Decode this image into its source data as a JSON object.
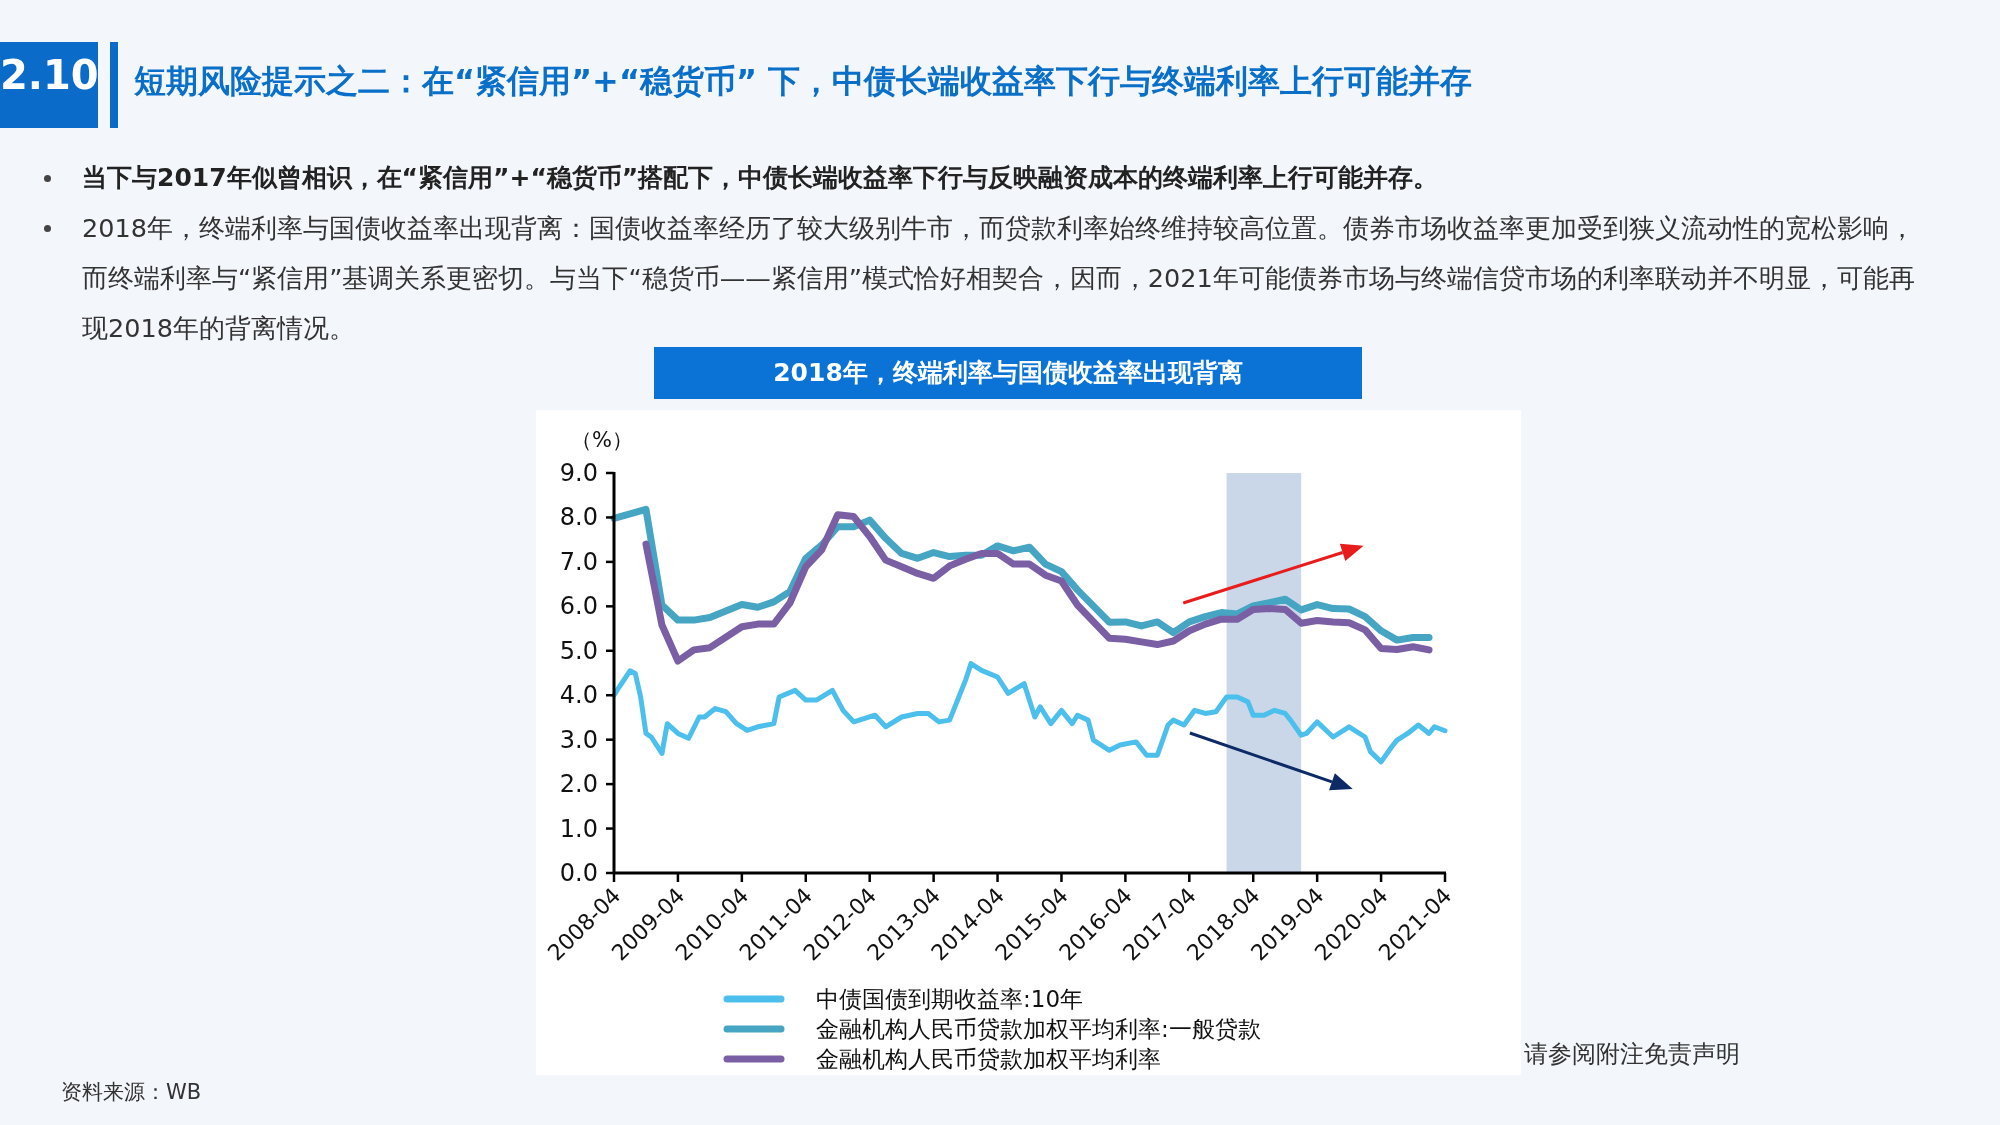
{
  "chart_data": {
    "type": "line",
    "title": "2018年，终端利率与国债收益率出现背离",
    "subtitle": "短期风险提示之二：在“紧信用”+“稳货币” 下，中债长端收益率下行与终端利率上行可能并存",
    "ylabel": "（%）",
    "annotations": [
      "2.10",
      "当下与2017年似曾相识，在“紧信用”+“稳货币”搭配下，中债长端收益率下行与反映融资成本的终端利率上行可能并存。",
      "2018年，终端利率与国债收益率出现背离：国债收益率经历了较大级别牛市，而贷款利率始终维持较高位置。债券市场收益率更加受到狭义流动性的宽松影响，而终端利率与“紧信用”基调关系更密切。与当下“稳货币——紧信用”模式恰好相契合，因而，2021年可能债券市场与终端信贷市场的利率联动并不明显，可能再现2018年的背离情况。",
      "资料来源：WB",
      "请参阅附注免责声明"
    ],
    "xlim": [
      "2008-04",
      "2021-04"
    ],
    "xticks": [
      "2008-04",
      "2009-04",
      "2010-04",
      "2011-04",
      "2012-04",
      "2013-04",
      "2014-04",
      "2015-04",
      "2016-04",
      "2017-04",
      "2018-04",
      "2019-04",
      "2020-04",
      "2021-04"
    ],
    "ylim": [
      0,
      9
    ],
    "yticks": [
      {
        "value": 0,
        "label": "0.0"
      },
      {
        "value": 1,
        "label": "1.0"
      },
      {
        "value": 2,
        "label": "2.0"
      },
      {
        "value": 3,
        "label": "3.0"
      },
      {
        "value": 4,
        "label": "4.0"
      },
      {
        "value": 5,
        "label": "5.0"
      },
      {
        "value": 6,
        "label": "6.0"
      },
      {
        "value": 7,
        "label": "7.0"
      },
      {
        "value": 8,
        "label": "8.0"
      },
      {
        "value": 9,
        "label": "9.0"
      }
    ],
    "bands": [
      {
        "axis": "x",
        "from": "2017-11",
        "to": "2019-01",
        "color": "#c9d7e9"
      }
    ],
    "legend": "bottom",
    "grid": false,
    "marker": "none",
    "line_style": "solid",
    "series": [
      {
        "name": "中债国债到期收益率:10年",
        "color": "#4dbfec",
        "x": [
          "2008-04",
          "2008-05",
          "2008-07",
          "2008-08",
          "2008-09",
          "2008-10",
          "2008-11",
          "2009-01",
          "2009-02",
          "2009-04",
          "2009-06",
          "2009-08",
          "2009-09",
          "2009-11",
          "2010-01",
          "2010-03",
          "2010-05",
          "2010-07",
          "2010-10",
          "2010-11",
          "2011-02",
          "2011-04",
          "2011-06",
          "2011-09",
          "2011-11",
          "2012-01",
          "2012-05",
          "2012-07",
          "2012-10",
          "2013-01",
          "2013-03",
          "2013-05",
          "2013-07",
          "2013-09",
          "2013-10",
          "2013-11",
          "2014-01",
          "2014-04",
          "2014-06",
          "2014-09",
          "2014-11",
          "2014-12",
          "2015-02",
          "2015-04",
          "2015-06",
          "2015-07",
          "2015-09",
          "2015-10",
          "2016-01",
          "2016-03",
          "2016-06",
          "2016-08",
          "2016-10",
          "2016-12",
          "2017-01",
          "2017-03",
          "2017-05",
          "2017-07",
          "2017-09",
          "2017-11",
          "2018-01",
          "2018-03",
          "2018-04",
          "2018-06",
          "2018-08",
          "2018-10",
          "2018-11",
          "2019-01",
          "2019-02",
          "2019-04",
          "2019-07",
          "2019-10",
          "2020-01",
          "2020-02",
          "2020-04",
          "2020-06",
          "2020-07",
          "2020-09",
          "2020-11",
          "2021-01",
          "2021-02",
          "2021-04"
        ],
        "values": [
          4.0,
          4.19,
          4.55,
          4.49,
          3.96,
          3.14,
          3.06,
          2.69,
          3.36,
          3.14,
          3.03,
          3.51,
          3.51,
          3.7,
          3.63,
          3.36,
          3.21,
          3.29,
          3.36,
          3.96,
          4.11,
          3.89,
          3.89,
          4.11,
          3.66,
          3.4,
          3.55,
          3.29,
          3.51,
          3.59,
          3.59,
          3.4,
          3.44,
          4.04,
          4.34,
          4.71,
          4.56,
          4.41,
          4.04,
          4.26,
          3.51,
          3.74,
          3.36,
          3.66,
          3.36,
          3.55,
          3.44,
          2.99,
          2.76,
          2.88,
          2.95,
          2.65,
          2.65,
          3.33,
          3.44,
          3.33,
          3.66,
          3.59,
          3.63,
          3.96,
          3.96,
          3.85,
          3.55,
          3.55,
          3.66,
          3.59,
          3.44,
          3.1,
          3.14,
          3.4,
          3.06,
          3.29,
          3.06,
          2.73,
          2.5,
          2.84,
          2.99,
          3.14,
          3.33,
          3.14,
          3.29,
          3.2
        ]
      },
      {
        "name": "金融机构人民币贷款加权平均利率:一般贷款",
        "color": "#45a5c2",
        "x": [
          "2008-04",
          "2008-10",
          "2009-01",
          "2009-04",
          "2009-07",
          "2009-10",
          "2010-04",
          "2010-07",
          "2010-10",
          "2011-01",
          "2011-04",
          "2011-07",
          "2011-10",
          "2012-01",
          "2012-04",
          "2012-07",
          "2012-10",
          "2013-01",
          "2013-04",
          "2013-07",
          "2013-10",
          "2014-01",
          "2014-04",
          "2014-07",
          "2014-10",
          "2015-01",
          "2015-04",
          "2015-07",
          "2016-01",
          "2016-04",
          "2016-07",
          "2016-10",
          "2017-01",
          "2017-04",
          "2017-07",
          "2017-10",
          "2018-01",
          "2018-04",
          "2018-07",
          "2018-10",
          "2019-01",
          "2019-04",
          "2019-07",
          "2019-10",
          "2020-01",
          "2020-04",
          "2020-07",
          "2020-10",
          "2021-01"
        ],
        "values": [
          7.98,
          8.18,
          6.03,
          5.69,
          5.69,
          5.75,
          6.04,
          5.98,
          6.1,
          6.33,
          7.08,
          7.38,
          7.79,
          7.79,
          7.94,
          7.53,
          7.19,
          7.08,
          7.21,
          7.12,
          7.15,
          7.15,
          7.36,
          7.25,
          7.33,
          6.95,
          6.78,
          6.37,
          5.64,
          5.65,
          5.56,
          5.65,
          5.41,
          5.65,
          5.77,
          5.86,
          5.83,
          6.01,
          6.08,
          6.16,
          5.92,
          6.04,
          5.95,
          5.94,
          5.77,
          5.45,
          5.24,
          5.3,
          5.3
        ]
      },
      {
        "name": "金融机构人民币贷款加权平均利率",
        "color": "#7b5fa5",
        "x": [
          "2008-10",
          "2009-01",
          "2009-04",
          "2009-07",
          "2009-10",
          "2010-04",
          "2010-07",
          "2010-10",
          "2011-01",
          "2011-04",
          "2011-07",
          "2011-10",
          "2012-01",
          "2012-04",
          "2012-07",
          "2012-10",
          "2013-01",
          "2013-04",
          "2013-07",
          "2013-10",
          "2014-01",
          "2014-04",
          "2014-07",
          "2014-10",
          "2015-01",
          "2015-04",
          "2015-07",
          "2016-01",
          "2016-04",
          "2016-07",
          "2016-10",
          "2017-01",
          "2017-04",
          "2017-07",
          "2017-10",
          "2018-01",
          "2018-04",
          "2018-07",
          "2018-10",
          "2019-01",
          "2019-04",
          "2019-07",
          "2019-10",
          "2020-01",
          "2020-04",
          "2020-07",
          "2020-10",
          "2021-01"
        ],
        "values": [
          7.4,
          5.58,
          4.77,
          5.02,
          5.07,
          5.54,
          5.6,
          5.6,
          6.07,
          6.89,
          7.27,
          8.06,
          8.02,
          7.57,
          7.04,
          6.89,
          6.74,
          6.63,
          6.91,
          7.06,
          7.19,
          7.19,
          6.95,
          6.95,
          6.7,
          6.57,
          6.03,
          5.28,
          5.26,
          5.2,
          5.14,
          5.22,
          5.45,
          5.6,
          5.71,
          5.71,
          5.93,
          5.95,
          5.93,
          5.62,
          5.68,
          5.65,
          5.63,
          5.47,
          5.05,
          5.03,
          5.09,
          5.02
        ]
      }
    ]
  }
}
